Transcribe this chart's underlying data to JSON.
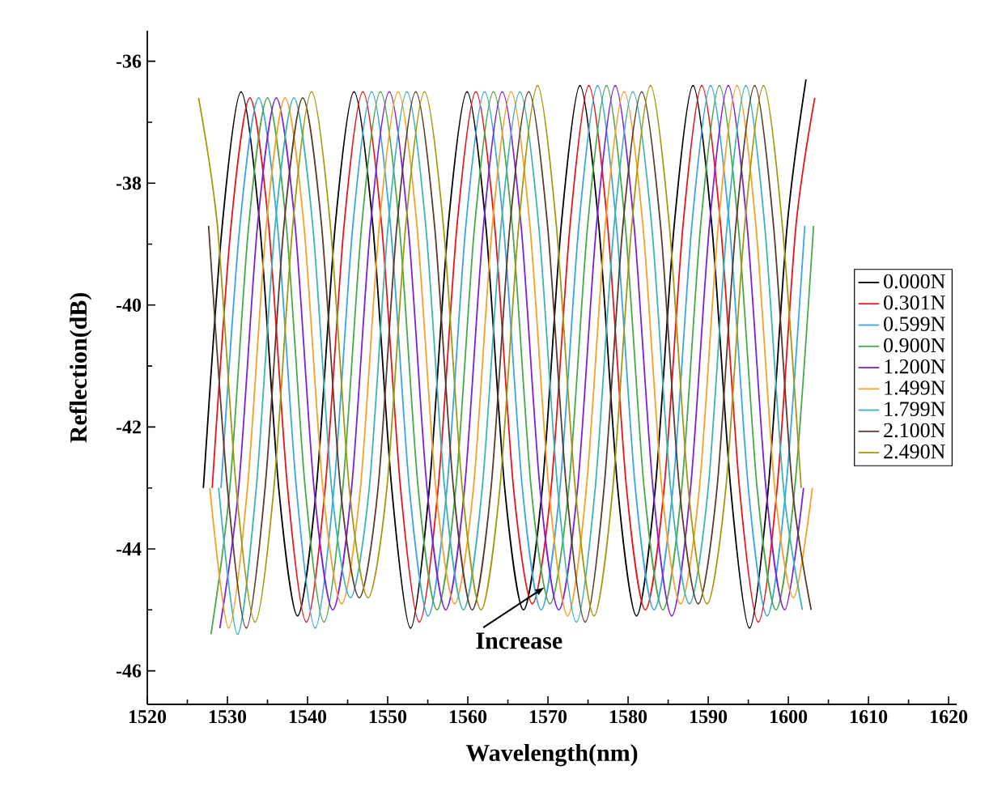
{
  "chart_data": {
    "type": "line",
    "xlabel": "Wavelength(nm)",
    "ylabel": "Reflection(dB)",
    "xlim": [
      1520,
      1621
    ],
    "ylim": [
      -46.55,
      -35.5
    ],
    "xticks": [
      1520,
      1530,
      1540,
      1550,
      1560,
      1570,
      1580,
      1590,
      1600,
      1610,
      1620
    ],
    "yticks": [
      -46,
      -44,
      -42,
      -40,
      -38,
      -36
    ],
    "legend": "right",
    "annotations": [
      {
        "text": "Increase",
        "x": 1570,
        "y": -44.6
      }
    ],
    "series": [
      {
        "name": "0.000N",
        "color": "#000000",
        "x": [
          1527.0,
          1529.35,
          1531.7,
          1534.05,
          1536.4,
          1538.75,
          1541.1,
          1543.45,
          1545.8,
          1548.15,
          1550.5,
          1552.85,
          1555.2,
          1557.55,
          1559.9,
          1562.25,
          1564.6,
          1566.95,
          1569.3,
          1571.65,
          1574.0,
          1576.35,
          1578.7,
          1581.05,
          1583.4,
          1585.75,
          1588.1,
          1590.45,
          1592.8,
          1595.15,
          1597.5,
          1599.85,
          1602.2
        ],
        "values": [
          -43.0,
          -38.7,
          -36.5,
          -38.7,
          -43.0,
          -45.1,
          -43.0,
          -38.7,
          -36.5,
          -38.7,
          -43.0,
          -45.3,
          -43.0,
          -38.7,
          -36.5,
          -38.7,
          -43.0,
          -45.0,
          -43.0,
          -38.7,
          -36.4,
          -38.7,
          -43.0,
          -45.1,
          -43.0,
          -38.7,
          -36.4,
          -38.7,
          -43.0,
          -45.3,
          -43.0,
          -38.7,
          -36.3
        ]
      },
      {
        "name": "0.301N",
        "color": "#e8141c",
        "x": [
          1528.1,
          1530.45,
          1532.8,
          1535.15,
          1537.5,
          1539.85,
          1542.2,
          1544.55,
          1546.9,
          1549.25,
          1551.6,
          1553.95,
          1556.3,
          1558.65,
          1561.0,
          1563.35,
          1565.7,
          1568.05,
          1570.4,
          1572.75,
          1575.1,
          1577.45,
          1579.8,
          1582.15,
          1584.5,
          1586.85,
          1589.2,
          1591.55,
          1593.9,
          1596.25,
          1598.6,
          1600.95,
          1603.3
        ],
        "values": [
          -43.0,
          -38.7,
          -36.6,
          -38.7,
          -43.0,
          -45.2,
          -43.0,
          -38.7,
          -36.5,
          -38.7,
          -43.0,
          -45.2,
          -43.0,
          -38.7,
          -36.5,
          -38.7,
          -43.0,
          -44.9,
          -43.0,
          -38.7,
          -36.4,
          -38.7,
          -43.0,
          -45.0,
          -43.0,
          -38.7,
          -36.4,
          -38.7,
          -43.0,
          -45.2,
          -43.0,
          -38.7,
          -36.6
        ]
      },
      {
        "name": "0.599N",
        "color": "#3aa6dd",
        "x": [
          1529.2,
          1531.55,
          1533.9,
          1536.25,
          1538.6,
          1540.95,
          1543.3,
          1545.65,
          1548.0,
          1550.35,
          1552.7,
          1555.05,
          1557.4,
          1559.75,
          1562.1,
          1564.45,
          1566.8,
          1569.15,
          1571.5,
          1573.85,
          1576.2,
          1578.55,
          1580.9,
          1583.25,
          1585.6,
          1587.95,
          1590.3,
          1592.65,
          1595.0,
          1597.35,
          1599.7,
          1602.05
        ],
        "values": [
          -43.0,
          -38.7,
          -36.6,
          -38.7,
          -43.0,
          -45.3,
          -43.0,
          -38.7,
          -36.5,
          -38.7,
          -43.0,
          -45.1,
          -43.0,
          -38.7,
          -36.5,
          -38.7,
          -43.0,
          -45.0,
          -43.0,
          -38.7,
          -36.4,
          -38.7,
          -43.0,
          -45.0,
          -43.0,
          -38.7,
          -36.4,
          -38.7,
          -43.0,
          -45.1,
          -43.0,
          -38.7
        ]
      },
      {
        "name": "0.900N",
        "color": "#4aa84a",
        "x": [
          1527.95,
          1530.3,
          1532.65,
          1535.0,
          1537.35,
          1539.7,
          1542.05,
          1544.4,
          1546.75,
          1549.1,
          1551.45,
          1553.8,
          1556.15,
          1558.5,
          1560.85,
          1563.2,
          1565.55,
          1567.9,
          1570.25,
          1572.6,
          1574.95,
          1577.3,
          1579.65,
          1582.0,
          1584.35,
          1586.7,
          1589.05,
          1591.4,
          1593.75,
          1596.1,
          1598.45,
          1600.8,
          1603.15
        ],
        "values": [
          -45.4,
          -43.0,
          -38.7,
          -36.6,
          -38.7,
          -43.0,
          -45.2,
          -43.0,
          -38.7,
          -36.5,
          -38.7,
          -43.0,
          -45.0,
          -43.0,
          -38.7,
          -36.5,
          -38.7,
          -43.0,
          -44.9,
          -43.0,
          -38.7,
          -36.4,
          -38.7,
          -43.0,
          -45.0,
          -43.0,
          -38.7,
          -36.4,
          -38.7,
          -43.0,
          -45.0,
          -43.0,
          -38.7
        ]
      },
      {
        "name": "1.200N",
        "color": "#7b22d8",
        "x": [
          1529.05,
          1531.4,
          1533.75,
          1536.1,
          1538.45,
          1540.8,
          1543.15,
          1545.5,
          1547.85,
          1550.2,
          1552.55,
          1554.9,
          1557.25,
          1559.6,
          1561.95,
          1564.3,
          1566.65,
          1569.0,
          1571.35,
          1573.7,
          1576.05,
          1578.4,
          1580.75,
          1583.1,
          1585.45,
          1587.8,
          1590.15,
          1592.5,
          1594.85,
          1597.2,
          1599.55,
          1601.9
        ],
        "values": [
          -45.3,
          -43.0,
          -38.7,
          -36.6,
          -38.7,
          -43.0,
          -45.0,
          -43.0,
          -38.7,
          -36.5,
          -38.7,
          -43.0,
          -45.0,
          -43.0,
          -38.7,
          -36.5,
          -38.7,
          -43.0,
          -45.0,
          -43.0,
          -38.7,
          -36.4,
          -38.7,
          -43.0,
          -45.1,
          -43.0,
          -38.7,
          -36.4,
          -38.7,
          -43.0,
          -45.0,
          -43.0
        ]
      },
      {
        "name": "1.499N",
        "color": "#f4a12a",
        "x": [
          1527.8,
          1530.15,
          1532.5,
          1534.85,
          1537.2,
          1539.55,
          1541.9,
          1544.25,
          1546.6,
          1548.95,
          1551.3,
          1553.65,
          1556.0,
          1558.35,
          1560.7,
          1563.05,
          1565.4,
          1567.75,
          1570.1,
          1572.45,
          1574.8,
          1577.15,
          1579.5,
          1581.85,
          1584.2,
          1586.55,
          1588.9,
          1591.25,
          1593.6,
          1595.95,
          1598.3,
          1600.65,
          1603.0
        ],
        "values": [
          -43.0,
          -45.3,
          -43.0,
          -38.7,
          -36.6,
          -38.7,
          -43.0,
          -44.9,
          -43.0,
          -38.7,
          -36.5,
          -38.7,
          -43.0,
          -44.9,
          -43.0,
          -38.7,
          -36.5,
          -38.7,
          -43.0,
          -45.1,
          -43.0,
          -38.7,
          -36.5,
          -38.7,
          -43.0,
          -44.9,
          -43.0,
          -38.7,
          -36.4,
          -38.7,
          -43.0,
          -44.8,
          -43.0
        ]
      },
      {
        "name": "1.799N",
        "color": "#3fb3b3",
        "x": [
          1528.9,
          1531.25,
          1533.6,
          1535.95,
          1538.3,
          1540.65,
          1543.0,
          1545.35,
          1547.7,
          1550.05,
          1552.4,
          1554.75,
          1557.1,
          1559.45,
          1561.8,
          1564.15,
          1566.5,
          1568.85,
          1571.2,
          1573.55,
          1575.9,
          1578.25,
          1580.6,
          1582.95,
          1585.3,
          1587.65,
          1590.0,
          1592.35,
          1594.7,
          1597.05,
          1599.4,
          1601.75
        ],
        "values": [
          -43.0,
          -45.4,
          -43.0,
          -38.7,
          -36.6,
          -38.7,
          -43.0,
          -44.8,
          -43.0,
          -38.7,
          -36.5,
          -38.7,
          -43.0,
          -45.0,
          -43.0,
          -38.7,
          -36.5,
          -38.7,
          -43.0,
          -45.2,
          -43.0,
          -38.7,
          -36.5,
          -38.7,
          -43.0,
          -44.9,
          -43.0,
          -38.7,
          -36.4,
          -38.7,
          -43.0,
          -45.0
        ]
      },
      {
        "name": "2.100N",
        "color": "#5a3b2e",
        "x": [
          1527.65,
          1530.0,
          1532.35,
          1534.7,
          1537.05,
          1539.4,
          1541.75,
          1544.1,
          1546.45,
          1548.8,
          1551.15,
          1553.5,
          1555.85,
          1558.2,
          1560.55,
          1562.9,
          1565.25,
          1567.6,
          1569.95,
          1572.3,
          1574.65,
          1577.0,
          1579.35,
          1581.7,
          1584.05,
          1586.4,
          1588.75,
          1591.1,
          1593.45,
          1595.8,
          1598.15,
          1600.5,
          1602.85
        ],
        "values": [
          -38.7,
          -43.0,
          -45.3,
          -43.0,
          -38.7,
          -36.6,
          -38.7,
          -43.0,
          -44.8,
          -43.0,
          -38.7,
          -36.5,
          -38.7,
          -43.0,
          -45.0,
          -43.0,
          -38.7,
          -36.5,
          -38.7,
          -43.0,
          -45.2,
          -43.0,
          -38.7,
          -36.5,
          -38.7,
          -43.0,
          -44.9,
          -43.0,
          -38.7,
          -36.4,
          -38.7,
          -43.0,
          -45.0
        ]
      },
      {
        "name": "2.490N",
        "color": "#a09a10",
        "x": [
          1526.4,
          1528.75,
          1531.1,
          1533.45,
          1535.8,
          1538.15,
          1540.5,
          1542.85,
          1545.2,
          1547.55,
          1549.9,
          1552.25,
          1554.6,
          1556.95,
          1559.3,
          1561.65,
          1564.0,
          1566.35,
          1568.7,
          1571.05,
          1573.4,
          1575.75,
          1578.1,
          1580.45,
          1582.8,
          1585.15,
          1587.5,
          1589.85,
          1592.2,
          1594.55,
          1596.9,
          1599.25,
          1601.6
        ],
        "values": [
          -36.6,
          -38.7,
          -43.0,
          -45.2,
          -43.0,
          -38.7,
          -36.5,
          -38.7,
          -43.0,
          -44.8,
          -43.0,
          -38.7,
          -36.5,
          -38.7,
          -43.0,
          -45.0,
          -43.0,
          -38.7,
          -36.4,
          -38.7,
          -43.0,
          -45.1,
          -43.0,
          -38.7,
          -36.4,
          -38.7,
          -43.0,
          -44.9,
          -43.0,
          -38.7,
          -36.4,
          -38.7,
          -43.0
        ]
      }
    ]
  }
}
